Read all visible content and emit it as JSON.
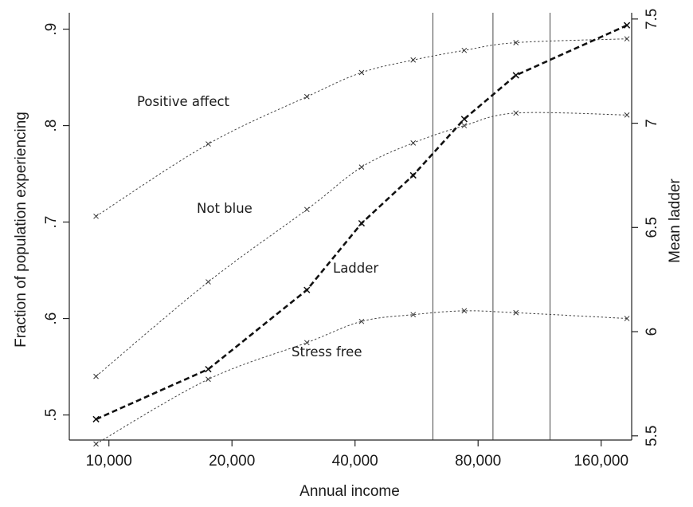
{
  "chart_data": {
    "type": "line",
    "xlabel": "Annual income",
    "ylabel_left": "Fraction of population experiencing",
    "ylabel_right": "Mean ladder",
    "x_scale": "log",
    "xlim": [
      8000,
      190000
    ],
    "ylim_left": [
      0.474,
      0.917
    ],
    "ylim_right": [
      5.48,
      7.53
    ],
    "x_ticks": [
      {
        "value": 10000,
        "label": "10,000"
      },
      {
        "value": 20000,
        "label": "20,000"
      },
      {
        "value": 40000,
        "label": "40,000"
      },
      {
        "value": 80000,
        "label": "80,000"
      },
      {
        "value": 160000,
        "label": "160,000"
      }
    ],
    "y_ticks_left": [
      {
        "value": 0.5,
        "label": ".5"
      },
      {
        "value": 0.6,
        "label": ".6"
      },
      {
        "value": 0.7,
        "label": ".7"
      },
      {
        "value": 0.8,
        "label": ".8"
      },
      {
        "value": 0.9,
        "label": ".9"
      }
    ],
    "y_ticks_right": [
      {
        "value": 5.5,
        "label": "5.5"
      },
      {
        "value": 6,
        "label": "6"
      },
      {
        "value": 6.5,
        "label": "6.5"
      },
      {
        "value": 7,
        "label": "7"
      },
      {
        "value": 7.5,
        "label": "7.5"
      }
    ],
    "vertical_lines_x": [
      62000,
      87000,
      120000
    ],
    "series": [
      {
        "name": "Positive affect",
        "axis": "left",
        "style": "dotted",
        "x": [
          9300,
          17500,
          30500,
          41500,
          55500,
          74000,
          99000,
          185000
        ],
        "y": [
          0.706,
          0.781,
          0.83,
          0.855,
          0.868,
          0.878,
          0.886,
          0.89
        ]
      },
      {
        "name": "Not blue",
        "axis": "left",
        "style": "dotted",
        "x": [
          9300,
          17500,
          30500,
          41500,
          55500,
          74000,
          99000,
          185000
        ],
        "y": [
          0.54,
          0.638,
          0.713,
          0.757,
          0.782,
          0.8,
          0.813,
          0.811
        ]
      },
      {
        "name": "Stress free",
        "axis": "left",
        "style": "dotted",
        "x": [
          9300,
          17500,
          30500,
          41500,
          55500,
          74000,
          99000,
          185000
        ],
        "y": [
          0.47,
          0.537,
          0.575,
          0.597,
          0.604,
          0.608,
          0.606,
          0.6
        ]
      },
      {
        "name": "Ladder",
        "axis": "right",
        "style": "dashed",
        "x": [
          9300,
          17500,
          30500,
          41500,
          55500,
          74000,
          99000,
          185000
        ],
        "y": [
          5.58,
          5.82,
          6.2,
          6.52,
          6.75,
          7.02,
          7.23,
          7.47
        ]
      }
    ],
    "annotations": [
      {
        "text": "Positive affect",
        "series": "Positive affect"
      },
      {
        "text": "Not blue",
        "series": "Not blue"
      },
      {
        "text": "Ladder",
        "series": "Ladder"
      },
      {
        "text": "Stress free",
        "series": "Stress free"
      }
    ]
  }
}
